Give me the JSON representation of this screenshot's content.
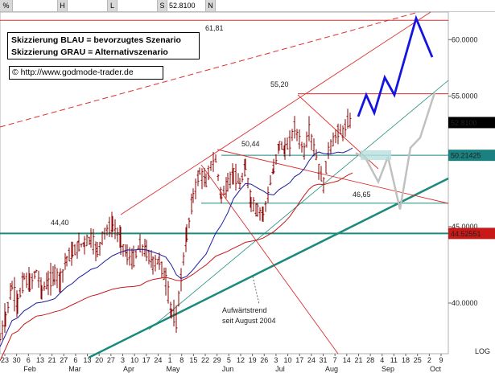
{
  "toolbar": {
    "pct_label": "%",
    "h_label": "H",
    "l_label": "L",
    "s_label": "S",
    "s_value": "52.8100",
    "n_label": "N"
  },
  "legend": {
    "line1": "Skizzierung BLAU = bevorzugtes Szenario",
    "line2": "Skizzierung GRAU = Alternativszenario"
  },
  "url": "© http://www.godmode-trader.de",
  "colors": {
    "price_bar": "#8b0000",
    "ma_blue": "#1a1aa0",
    "ma_red": "#c81818",
    "trend_red": "#dd3030",
    "teal": "#1a8a7a",
    "scenario_blue": "#1515e0",
    "scenario_gray": "#c0c0c0",
    "label_black_bg": "#000000",
    "label_teal_bg": "#1a8080"
  },
  "chart_data": {
    "type": "candlestick",
    "instrument_view": "daily OHLC bars with trendlines and scenario sketches",
    "y_axis": {
      "position": "right",
      "ticks": [
        40.0,
        45.0,
        50.0,
        55.0,
        60.0
      ],
      "tick_labels": [
        "40.0000",
        "45.0000",
        "50.0000",
        "55.0000",
        "60.0000"
      ],
      "scale_label": "LOG",
      "range": [
        37.0,
        62.6
      ]
    },
    "x_axis": {
      "day_ticks": [
        "23",
        "30",
        "6",
        "13",
        "21",
        "27",
        "6",
        "13",
        "20",
        "27",
        "3",
        "10",
        "17",
        "24",
        "1",
        "8",
        "15",
        "22",
        "29",
        "5",
        "12",
        "19",
        "26",
        "3",
        "10",
        "17",
        "24",
        "31",
        "7",
        "14",
        "21",
        "28",
        "4",
        "11",
        "18",
        "25",
        "2",
        "9"
      ],
      "months": [
        "Feb",
        "Mar",
        "Apr",
        "May",
        "Jun",
        "Jul",
        "Aug",
        "Sep",
        "Oct"
      ]
    },
    "current_price_label": "52.8100",
    "level_labels": [
      "50.21425",
      "44.52551"
    ],
    "annotations": [
      "61,81",
      "55,20",
      "50,44",
      "46,65",
      "44,40",
      "Aufwärtstrend",
      "seit August 2004"
    ],
    "horizontal_levels": [
      61.81,
      55.2,
      50.21425,
      46.65,
      44.52551
    ],
    "price_path": [
      [
        0,
        37.8
      ],
      [
        7,
        39.2
      ],
      [
        15,
        41.0
      ],
      [
        22,
        40.0
      ],
      [
        30,
        41.6
      ],
      [
        37,
        41.2
      ],
      [
        45,
        42.0
      ],
      [
        52,
        40.8
      ],
      [
        60,
        41.3
      ],
      [
        68,
        41.8
      ],
      [
        75,
        41.5
      ],
      [
        83,
        42.9
      ],
      [
        90,
        43.2
      ],
      [
        98,
        43.7
      ],
      [
        105,
        43.9
      ],
      [
        113,
        44.2
      ],
      [
        121,
        43.3
      ],
      [
        130,
        44.7
      ],
      [
        140,
        45.1
      ],
      [
        150,
        44.1
      ],
      [
        158,
        43.0
      ],
      [
        166,
        42.8
      ],
      [
        174,
        43.7
      ],
      [
        182,
        43.3
      ],
      [
        190,
        42.5
      ],
      [
        198,
        42.7
      ],
      [
        206,
        41.4
      ],
      [
        213,
        39.5
      ],
      [
        219,
        38.9
      ],
      [
        225,
        41.6
      ],
      [
        232,
        44.4
      ],
      [
        240,
        47.2
      ],
      [
        248,
        48.9
      ],
      [
        256,
        48.2
      ],
      [
        262,
        49.5
      ],
      [
        268,
        49.8
      ],
      [
        275,
        47.1
      ],
      [
        283,
        48.0
      ],
      [
        290,
        48.9
      ],
      [
        298,
        47.9
      ],
      [
        305,
        49.3
      ],
      [
        312,
        46.7
      ],
      [
        320,
        46.1
      ],
      [
        327,
        46.0
      ],
      [
        333,
        47.2
      ],
      [
        340,
        49.2
      ],
      [
        347,
        51.1
      ],
      [
        354,
        50.6
      ],
      [
        360,
        51.2
      ],
      [
        366,
        52.5
      ],
      [
        372,
        51.4
      ],
      [
        378,
        50.5
      ],
      [
        384,
        52.2
      ],
      [
        390,
        50.8
      ],
      [
        396,
        49.2
      ],
      [
        402,
        48.0
      ],
      [
        408,
        50.6
      ],
      [
        414,
        51.3
      ],
      [
        420,
        52.1
      ],
      [
        426,
        52.0
      ],
      [
        432,
        52.9
      ],
      [
        438,
        52.8
      ]
    ],
    "scenario_blue_points": [
      [
        445,
        53.3
      ],
      [
        455,
        55.1
      ],
      [
        465,
        53.6
      ],
      [
        478,
        56.6
      ],
      [
        490,
        55.1
      ],
      [
        517,
        62.0
      ],
      [
        537,
        58.4
      ]
    ],
    "scenario_gray_points": [
      [
        442,
        50.4
      ],
      [
        455,
        49.9
      ],
      [
        470,
        48.2
      ],
      [
        482,
        50.1
      ],
      [
        497,
        46.2
      ],
      [
        510,
        50.8
      ],
      [
        522,
        51.6
      ],
      [
        540,
        55.3
      ]
    ]
  }
}
